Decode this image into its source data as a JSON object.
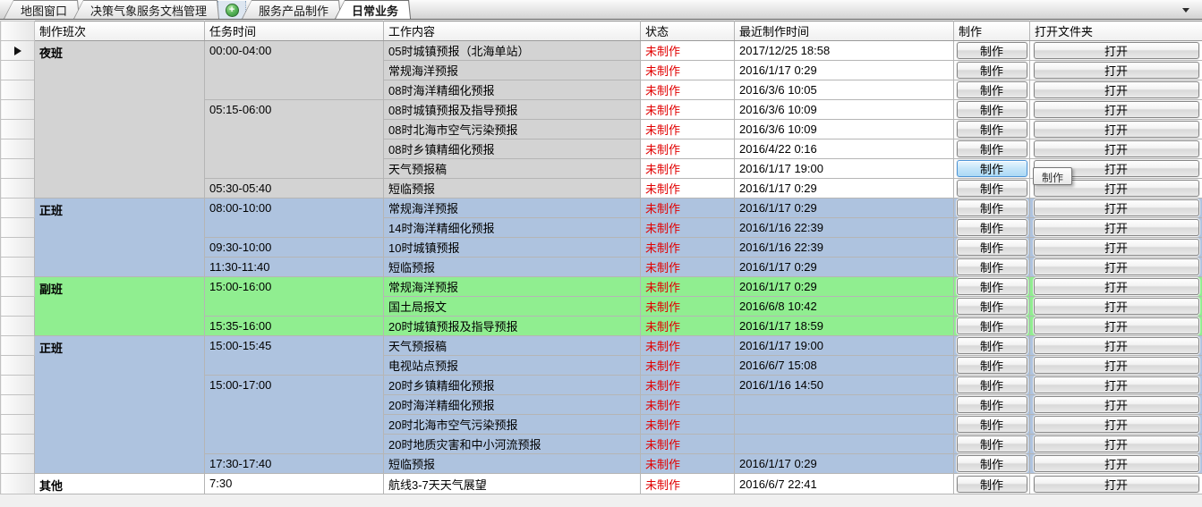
{
  "tab_bar": {
    "tabs": [
      {
        "label": "地图窗口",
        "active": false
      },
      {
        "label": "决策气象服务文档管理",
        "active": false
      },
      {
        "label": "服务产品制作",
        "active": false
      },
      {
        "label": "日常业务",
        "active": true
      }
    ],
    "add_icon": "plus-icon",
    "overflow_icon": "chevron-down-icon"
  },
  "grid": {
    "columns": [
      "制作班次",
      "任务时间",
      "工作内容",
      "状态",
      "最近制作时间",
      "制作",
      "打开文件夹"
    ],
    "make_button_label": "制作",
    "open_button_label": "打开",
    "indicator_row": 0,
    "groups": [
      {
        "shift": "夜班",
        "color_key": "gray",
        "tint_right_columns": false,
        "blocks": [
          {
            "time": "00:00-04:00",
            "tasks": [
              {
                "content": "05时城镇预报（北海单站）",
                "status": "未制作",
                "last": "2017/12/25 18:58"
              },
              {
                "content": "常规海洋预报",
                "status": "未制作",
                "last": "2016/1/17 0:29"
              },
              {
                "content": "08时海洋精细化预报",
                "status": "未制作",
                "last": "2016/3/6 10:05"
              }
            ]
          },
          {
            "time": "05:15-06:00",
            "tasks": [
              {
                "content": "08时城镇预报及指导预报",
                "status": "未制作",
                "last": "2016/3/6 10:09"
              },
              {
                "content": "08时北海市空气污染预报",
                "status": "未制作",
                "last": "2016/3/6 10:09"
              },
              {
                "content": "08时乡镇精细化预报",
                "status": "未制作",
                "last": "2016/4/22 0:16"
              },
              {
                "content": "天气预报稿",
                "status": "未制作",
                "last": "2016/1/17 19:00",
                "make_highlighted": true
              }
            ]
          },
          {
            "time": "05:30-05:40",
            "tasks": [
              {
                "content": "短临预报",
                "status": "未制作",
                "last": "2016/1/17 0:29"
              }
            ]
          }
        ]
      },
      {
        "shift": "正班",
        "color_key": "blue",
        "tint_right_columns": true,
        "blocks": [
          {
            "time": "08:00-10:00",
            "tasks": [
              {
                "content": "常规海洋预报",
                "status": "未制作",
                "last": "2016/1/17 0:29"
              },
              {
                "content": "14时海洋精细化预报",
                "status": "未制作",
                "last": "2016/1/16 22:39"
              }
            ]
          },
          {
            "time": "09:30-10:00",
            "tasks": [
              {
                "content": "10时城镇预报",
                "status": "未制作",
                "last": "2016/1/16 22:39"
              }
            ]
          },
          {
            "time": "11:30-11:40",
            "tasks": [
              {
                "content": "短临预报",
                "status": "未制作",
                "last": "2016/1/17 0:29"
              }
            ]
          }
        ]
      },
      {
        "shift": "副班",
        "color_key": "green",
        "tint_right_columns": true,
        "blocks": [
          {
            "time": "15:00-16:00",
            "tasks": [
              {
                "content": "常规海洋预报",
                "status": "未制作",
                "last": "2016/1/17 0:29"
              },
              {
                "content": "国土局报文",
                "status": "未制作",
                "last": "2016/6/8 10:42"
              }
            ]
          },
          {
            "time": "15:35-16:00",
            "tasks": [
              {
                "content": "20时城镇预报及指导预报",
                "status": "未制作",
                "last": "2016/1/17 18:59"
              }
            ]
          }
        ]
      },
      {
        "shift": "正班",
        "color_key": "blue",
        "tint_right_columns": true,
        "blocks": [
          {
            "time": "15:00-15:45",
            "tasks": [
              {
                "content": "天气预报稿",
                "status": "未制作",
                "last": "2016/1/17 19:00"
              },
              {
                "content": "电视站点预报",
                "status": "未制作",
                "last": "2016/6/7 15:08"
              }
            ]
          },
          {
            "time": "15:00-17:00",
            "tasks": [
              {
                "content": "20时乡镇精细化预报",
                "status": "未制作",
                "last": "2016/1/16 14:50"
              },
              {
                "content": "20时海洋精细化预报",
                "status": "未制作",
                "last": ""
              },
              {
                "content": "20时北海市空气污染预报",
                "status": "未制作",
                "last": ""
              },
              {
                "content": "20时地质灾害和中小河流预报",
                "status": "未制作",
                "last": ""
              }
            ]
          },
          {
            "time": "17:30-17:40",
            "tasks": [
              {
                "content": "短临预报",
                "status": "未制作",
                "last": "2016/1/17 0:29"
              }
            ]
          }
        ]
      },
      {
        "shift": "其他",
        "color_key": "white",
        "tint_right_columns": true,
        "blocks": [
          {
            "time": "7:30",
            "tasks": [
              {
                "content": "航线3-7天天气展望",
                "status": "未制作",
                "last": "2016/6/7 22:41"
              }
            ]
          }
        ]
      }
    ]
  },
  "tooltip": {
    "text": "制作"
  },
  "colors": {
    "night_gray": "#d3d3d3",
    "regular_blue": "#aec3df",
    "deputy_green": "#90ee90",
    "status_red": "#e10000",
    "highlight_blue": "#abd9f5"
  }
}
